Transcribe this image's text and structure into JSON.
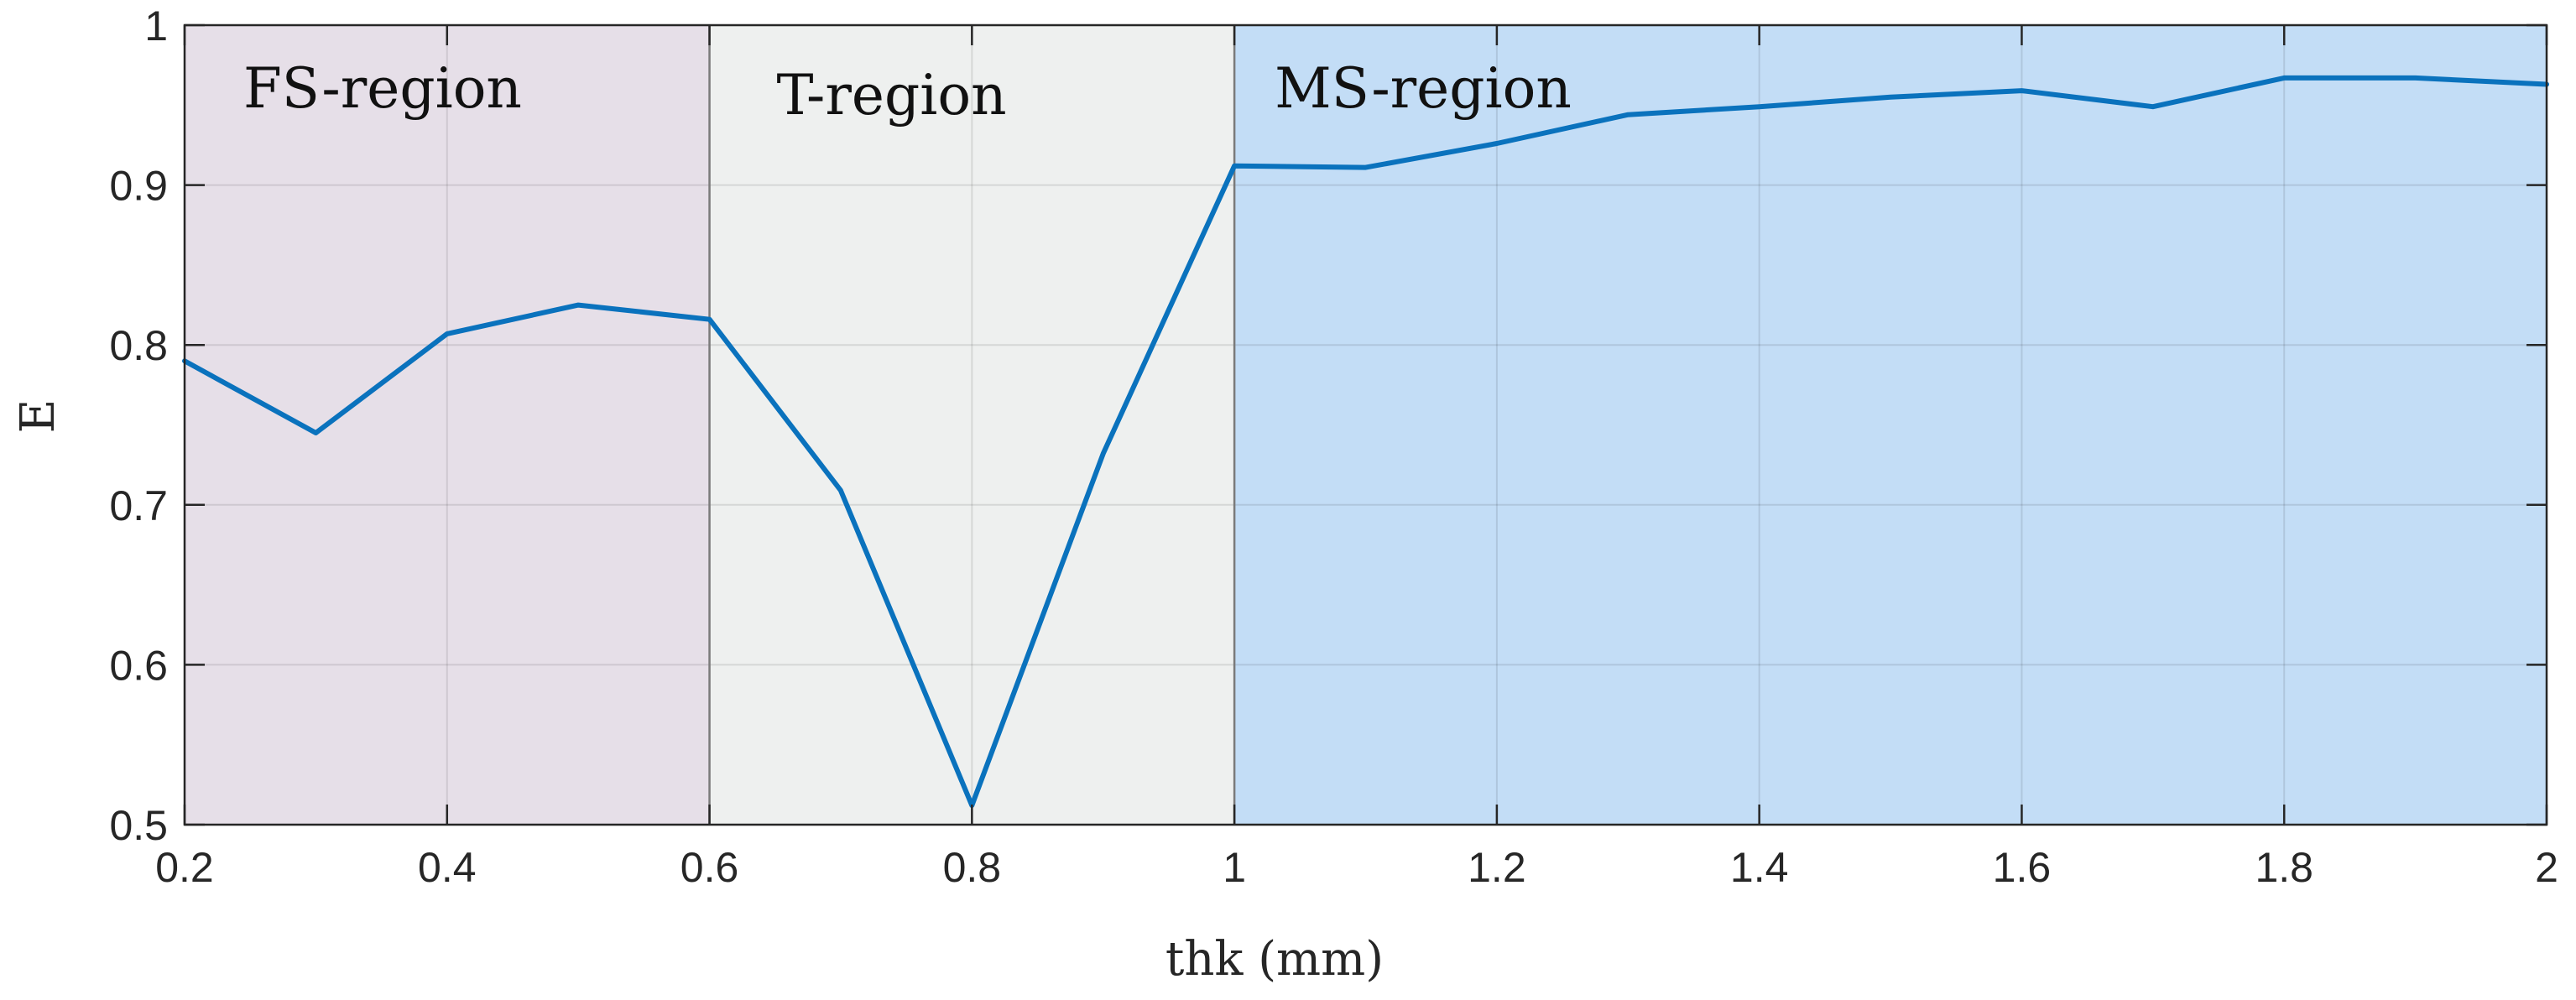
{
  "chart_data": {
    "type": "line",
    "title": "",
    "xlabel": "thk (mm)",
    "ylabel": "E",
    "xlim": [
      0.2,
      2
    ],
    "ylim": [
      0.5,
      1
    ],
    "grid": true,
    "x_ticks": [
      0.2,
      0.4,
      0.6,
      0.8,
      1,
      1.2,
      1.4,
      1.6,
      1.8,
      2
    ],
    "y_ticks": [
      0.5,
      0.6,
      0.7,
      0.8,
      0.9,
      1
    ],
    "x_tick_labels": [
      "0.2",
      "0.4",
      "0.6",
      "0.8",
      "1",
      "1.2",
      "1.4",
      "1.6",
      "1.8",
      "2"
    ],
    "y_tick_labels": [
      "0.5",
      "0.6",
      "0.7",
      "0.8",
      "0.9",
      "1"
    ],
    "regions": [
      {
        "label": "FS-region",
        "x_start": 0.2,
        "x_end": 0.6,
        "color": "#e6dfe8"
      },
      {
        "label": "T-region",
        "x_start": 0.6,
        "x_end": 1.0,
        "color": "#eef0ef"
      },
      {
        "label": "MS-region",
        "x_start": 1.0,
        "x_end": 2.0,
        "color": "#c3ddf6"
      }
    ],
    "series": [
      {
        "color": "#0a72bd",
        "x": [
          0.2,
          0.3,
          0.4,
          0.5,
          0.6,
          0.7,
          0.8,
          0.9,
          1.0,
          1.1,
          1.2,
          1.3,
          1.4,
          1.5,
          1.6,
          1.7,
          1.8,
          1.9,
          2.0
        ],
        "y": [
          0.79,
          0.745,
          0.807,
          0.825,
          0.816,
          0.709,
          0.512,
          0.732,
          0.912,
          0.911,
          0.926,
          0.944,
          0.949,
          0.955,
          0.959,
          0.949,
          0.967,
          0.967,
          0.963
        ]
      }
    ]
  }
}
